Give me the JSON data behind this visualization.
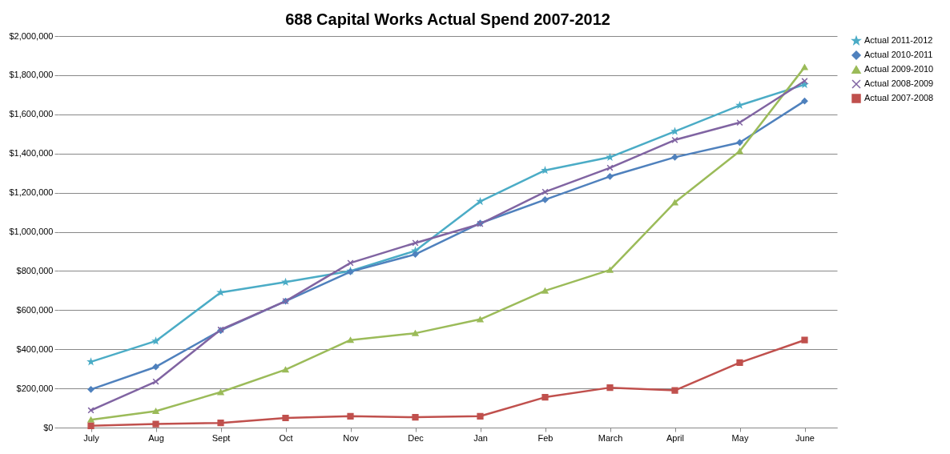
{
  "chart_data": {
    "type": "line",
    "title": "688 Capital Works Actual Spend 2007-2012",
    "categories": [
      "July",
      "Aug",
      "Sept",
      "Oct",
      "Nov",
      "Dec",
      "Jan",
      "Feb",
      "March",
      "April",
      "May",
      "June"
    ],
    "series": [
      {
        "name": "Actual 2011-2012",
        "color": "#4bacc6",
        "marker": "star",
        "values": [
          336000,
          442000,
          690000,
          743000,
          800000,
          903000,
          1155000,
          1314000,
          1381000,
          1513000,
          1646000,
          1752000
        ]
      },
      {
        "name": "Actual 2010-2011",
        "color": "#4f81bd",
        "marker": "diamond",
        "values": [
          195000,
          310000,
          496000,
          646000,
          796000,
          885000,
          1044000,
          1164000,
          1283000,
          1381000,
          1456000,
          1668000
        ]
      },
      {
        "name": "Actual 2009-2010",
        "color": "#9bbb59",
        "marker": "triangle",
        "values": [
          40000,
          84000,
          181000,
          296000,
          447000,
          482000,
          553000,
          699000,
          805000,
          1150000,
          1412000,
          1841000
        ]
      },
      {
        "name": "Actual 2008-2009",
        "color": "#8064a2",
        "marker": "cross",
        "values": [
          88000,
          235000,
          500000,
          646000,
          841000,
          943000,
          1040000,
          1204000,
          1327000,
          1469000,
          1558000,
          1770000
        ]
      },
      {
        "name": "Actual 2007-2008",
        "color": "#c0504d",
        "marker": "square",
        "values": [
          9000,
          18000,
          24000,
          49000,
          58000,
          53000,
          58000,
          155000,
          204000,
          190000,
          332000,
          447000
        ]
      }
    ],
    "ylim": [
      0,
      2000000
    ],
    "yticks": [
      {
        "value": 0,
        "label": "$0"
      },
      {
        "value": 200000,
        "label": "$200,000"
      },
      {
        "value": 400000,
        "label": "$400,000"
      },
      {
        "value": 600000,
        "label": "$600,000"
      },
      {
        "value": 800000,
        "label": "$800,000"
      },
      {
        "value": 1000000,
        "label": "$1,000,000"
      },
      {
        "value": 1200000,
        "label": "$1,200,000"
      },
      {
        "value": 1400000,
        "label": "$1,400,000"
      },
      {
        "value": 1600000,
        "label": "$1,600,000"
      },
      {
        "value": 1800000,
        "label": "$1,800,000"
      },
      {
        "value": 2000000,
        "label": "$2,000,000"
      }
    ],
    "grid": "y",
    "legend": "right",
    "line_style": "solid"
  }
}
